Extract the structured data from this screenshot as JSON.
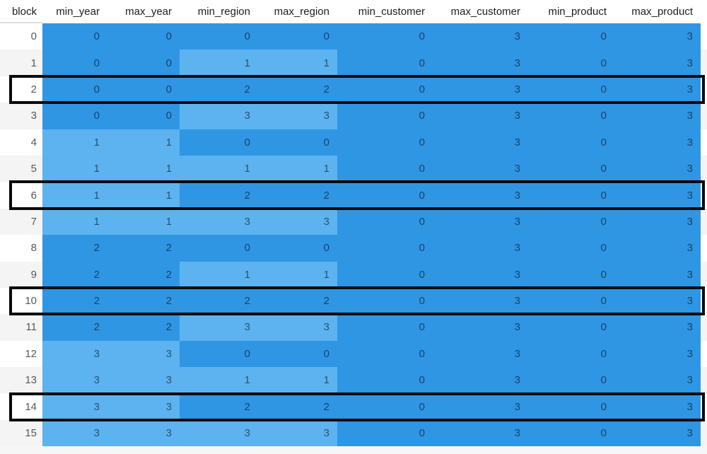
{
  "chart_data": {
    "type": "table",
    "title": "",
    "columns": [
      "block",
      "min_year",
      "max_year",
      "min_region",
      "max_region",
      "min_customer",
      "max_customer",
      "min_product",
      "max_product"
    ],
    "rows": [
      [
        0,
        0,
        0,
        0,
        0,
        0,
        3,
        0,
        3
      ],
      [
        1,
        0,
        0,
        1,
        1,
        0,
        3,
        0,
        3
      ],
      [
        2,
        0,
        0,
        2,
        2,
        0,
        3,
        0,
        3
      ],
      [
        3,
        0,
        0,
        3,
        3,
        0,
        3,
        0,
        3
      ],
      [
        4,
        1,
        1,
        0,
        0,
        0,
        3,
        0,
        3
      ],
      [
        5,
        1,
        1,
        1,
        1,
        0,
        3,
        0,
        3
      ],
      [
        6,
        1,
        1,
        2,
        2,
        0,
        3,
        0,
        3
      ],
      [
        7,
        1,
        1,
        3,
        3,
        0,
        3,
        0,
        3
      ],
      [
        8,
        2,
        2,
        0,
        0,
        0,
        3,
        0,
        3
      ],
      [
        9,
        2,
        2,
        1,
        1,
        0,
        3,
        0,
        3
      ],
      [
        10,
        2,
        2,
        2,
        2,
        0,
        3,
        0,
        3
      ],
      [
        11,
        2,
        2,
        3,
        3,
        0,
        3,
        0,
        3
      ],
      [
        12,
        3,
        3,
        0,
        0,
        0,
        3,
        0,
        3
      ],
      [
        13,
        3,
        3,
        1,
        1,
        0,
        3,
        0,
        3
      ],
      [
        14,
        3,
        3,
        2,
        2,
        0,
        3,
        0,
        3
      ],
      [
        15,
        3,
        3,
        3,
        3,
        0,
        3,
        0,
        3
      ]
    ],
    "highlighted_blocks": [
      2,
      6,
      10,
      14
    ],
    "layout_hints": {
      "cell_shading_rule": "shade alternates dark/light whenever a column value changes from the previous row",
      "grid": "off",
      "value_alignment": "right"
    }
  },
  "colors": {
    "cell_dark": "#2F96E4",
    "cell_light": "#5CB3F0",
    "highlight_border": "#0A0A0A",
    "header_bg": "#FFFFFF",
    "header_text": "#1D1D1F",
    "block_text": "#54585E",
    "zebra_stripe": "#F4F4F4",
    "page_bg": "#F6F6F6"
  }
}
